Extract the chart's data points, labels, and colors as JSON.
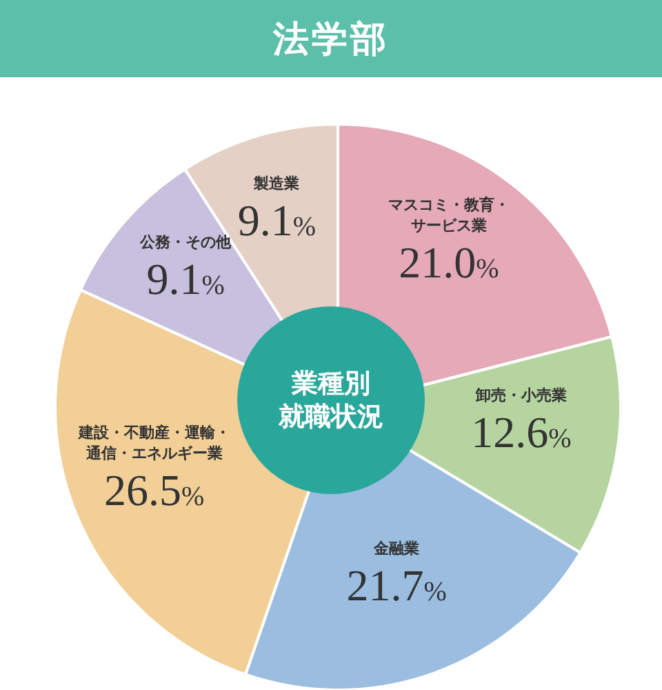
{
  "chart_data": {
    "type": "pie",
    "title": "法学部",
    "subtitle": "業種別就職状況",
    "categories": [
      "マスコミ・教育・サービス業",
      "卸売・小売業",
      "金融業",
      "建設・不動産・運輸・通信・エネルギー業",
      "公務・その他",
      "製造業"
    ],
    "values": [
      21.0,
      12.6,
      21.7,
      26.5,
      9.1,
      9.1
    ],
    "colors": [
      "#e5a9b8",
      "#b5d4a0",
      "#9abde0",
      "#f1cf97",
      "#c7c0de",
      "#e5d0c6"
    ],
    "value_labels": [
      "21.0%",
      "12.6%",
      "21.7%",
      "26.5%",
      "9.1%",
      "9.1%"
    ],
    "legend": false
  }
}
